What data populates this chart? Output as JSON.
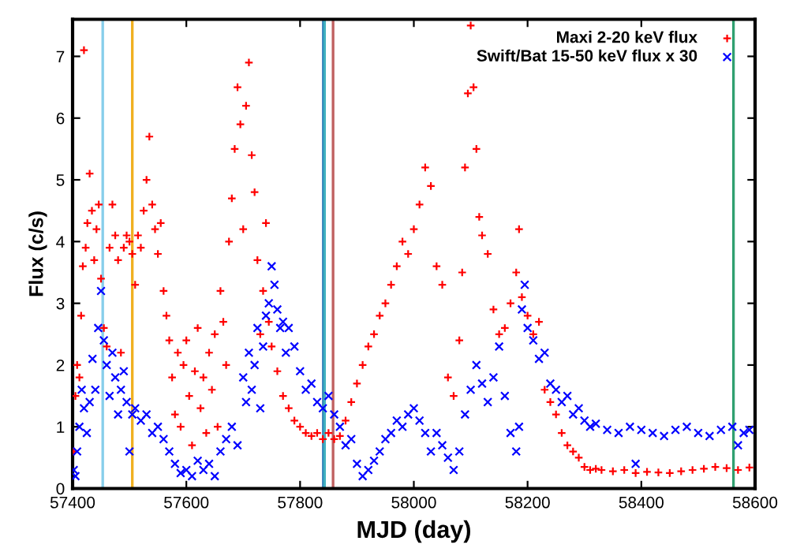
{
  "chart_data": {
    "type": "scatter",
    "xlabel": "MJD (day)",
    "ylabel": "Flux (c/s)",
    "xlim": [
      57400,
      58600
    ],
    "ylim": [
      0,
      7.6
    ],
    "xticks": [
      57400,
      57600,
      57800,
      58000,
      58200,
      58400,
      58600
    ],
    "yticks": [
      0,
      1,
      2,
      3,
      4,
      5,
      6,
      7
    ],
    "legend": "top right",
    "grid": false,
    "series": [
      {
        "name": "Maxi 2-20 keV flux",
        "color": "#ff0000",
        "marker": "cross",
        "x": [
          57402,
          57405,
          57408,
          57412,
          57415,
          57418,
          57420,
          57423,
          57426,
          57430,
          57434,
          57438,
          57442,
          57446,
          57450,
          57455,
          57460,
          57465,
          57470,
          57475,
          57480,
          57485,
          57490,
          57495,
          57500,
          57505,
          57510,
          57515,
          57520,
          57525,
          57530,
          57535,
          57540,
          57545,
          57550,
          57555,
          57560,
          57565,
          57570,
          57575,
          57580,
          57585,
          57590,
          57595,
          57600,
          57605,
          57610,
          57615,
          57620,
          57625,
          57630,
          57635,
          57640,
          57645,
          57650,
          57655,
          57660,
          57665,
          57670,
          57675,
          57680,
          57685,
          57690,
          57695,
          57700,
          57705,
          57710,
          57715,
          57720,
          57725,
          57730,
          57735,
          57740,
          57745,
          57750,
          57760,
          57770,
          57780,
          57790,
          57800,
          57810,
          57820,
          57830,
          57840,
          57850,
          57860,
          57870,
          57880,
          57890,
          57900,
          57910,
          57920,
          57930,
          57940,
          57950,
          57960,
          57970,
          57980,
          57990,
          58000,
          58010,
          58020,
          58030,
          58040,
          58050,
          58060,
          58070,
          58080,
          58085,
          58090,
          58095,
          58100,
          58105,
          58110,
          58115,
          58120,
          58130,
          58140,
          58150,
          58160,
          58170,
          58180,
          58185,
          58190,
          58200,
          58210,
          58220,
          58230,
          58240,
          58250,
          58260,
          58270,
          58280,
          58290,
          58300,
          58310,
          58320,
          58330,
          58350,
          58370,
          58390,
          58410,
          58430,
          58450,
          58470,
          58490,
          58510,
          58530,
          58550,
          58570,
          58590
        ],
        "values": [
          0.6,
          1.5,
          2.0,
          1.8,
          2.8,
          3.6,
          7.1,
          3.9,
          4.3,
          5.1,
          4.5,
          3.7,
          4.2,
          4.6,
          3.4,
          2.6,
          2.3,
          3.9,
          4.6,
          4.1,
          3.7,
          2.2,
          3.9,
          4.1,
          4.0,
          3.8,
          3.3,
          4.1,
          3.9,
          4.5,
          5.0,
          5.7,
          4.6,
          4.2,
          3.8,
          4.3,
          3.2,
          2.8,
          2.4,
          1.8,
          1.2,
          2.2,
          1.0,
          2.0,
          2.4,
          1.5,
          0.7,
          1.9,
          2.6,
          1.3,
          1.8,
          0.9,
          2.2,
          1.6,
          2.5,
          1.0,
          3.2,
          2.7,
          2.0,
          4.0,
          4.7,
          5.5,
          6.5,
          5.9,
          4.2,
          6.2,
          6.9,
          5.4,
          4.8,
          3.7,
          2.5,
          3.2,
          4.3,
          2.7,
          2.3,
          1.9,
          1.5,
          1.3,
          1.1,
          1.0,
          0.9,
          0.85,
          0.9,
          0.8,
          0.9,
          0.8,
          0.85,
          1.1,
          1.4,
          1.7,
          2.0,
          2.3,
          2.5,
          2.8,
          3.0,
          3.3,
          3.6,
          4.0,
          3.8,
          4.2,
          4.6,
          5.2,
          4.9,
          3.6,
          3.3,
          1.8,
          1.5,
          2.4,
          3.5,
          5.2,
          6.4,
          7.5,
          6.5,
          5.5,
          4.4,
          4.1,
          3.8,
          2.9,
          2.5,
          2.6,
          3.0,
          3.5,
          4.2,
          3.1,
          2.8,
          2.5,
          2.7,
          1.6,
          1.4,
          1.2,
          0.9,
          0.7,
          0.6,
          0.5,
          0.35,
          0.3,
          0.32,
          0.3,
          0.28,
          0.3,
          0.25,
          0.27,
          0.26,
          0.25,
          0.28,
          0.3,
          0.32,
          0.35,
          0.33,
          0.3,
          0.34
        ]
      },
      {
        "name": "Swift/Bat 15-50 keV flux x 30",
        "color": "#0000ff",
        "marker": "x",
        "x": [
          57402,
          57405,
          57408,
          57412,
          57416,
          57420,
          57425,
          57430,
          57435,
          57440,
          57445,
          57450,
          57455,
          57460,
          57465,
          57470,
          57475,
          57480,
          57485,
          57490,
          57495,
          57500,
          57505,
          57510,
          57520,
          57530,
          57540,
          57550,
          57560,
          57570,
          57580,
          57590,
          57600,
          57610,
          57620,
          57630,
          57640,
          57650,
          57660,
          57670,
          57680,
          57690,
          57700,
          57705,
          57710,
          57715,
          57720,
          57725,
          57730,
          57735,
          57740,
          57745,
          57750,
          57755,
          57760,
          57765,
          57770,
          57775,
          57780,
          57790,
          57800,
          57810,
          57820,
          57830,
          57840,
          57850,
          57860,
          57870,
          57880,
          57890,
          57900,
          57910,
          57920,
          57930,
          57940,
          57950,
          57960,
          57970,
          57980,
          57990,
          58000,
          58010,
          58020,
          58030,
          58040,
          58050,
          58060,
          58070,
          58080,
          58090,
          58100,
          58110,
          58120,
          58130,
          58140,
          58150,
          58160,
          58170,
          58180,
          58185,
          58190,
          58195,
          58200,
          58210,
          58220,
          58230,
          58240,
          58250,
          58260,
          58270,
          58280,
          58290,
          58300,
          58310,
          58320,
          58340,
          58360,
          58380,
          58390,
          58400,
          58420,
          58440,
          58460,
          58480,
          58500,
          58520,
          58540,
          58560,
          58570,
          58580,
          58590
        ],
        "values": [
          0.3,
          0.2,
          0.6,
          1.0,
          1.6,
          1.3,
          0.9,
          1.4,
          2.1,
          1.6,
          2.6,
          3.2,
          2.4,
          2.0,
          1.5,
          2.2,
          1.8,
          1.2,
          1.6,
          1.9,
          1.4,
          0.6,
          1.2,
          1.3,
          1.1,
          1.2,
          0.9,
          1.0,
          0.8,
          0.6,
          0.4,
          0.25,
          0.3,
          0.2,
          0.45,
          0.3,
          0.4,
          0.2,
          0.6,
          0.8,
          1.0,
          0.7,
          1.8,
          1.4,
          2.2,
          1.6,
          2.0,
          2.6,
          1.3,
          2.3,
          2.8,
          3.0,
          3.6,
          3.3,
          2.9,
          2.6,
          2.7,
          2.2,
          2.6,
          2.3,
          1.9,
          1.6,
          1.7,
          1.4,
          1.3,
          1.5,
          1.2,
          1.0,
          0.7,
          0.8,
          0.4,
          0.2,
          0.3,
          0.45,
          0.6,
          0.8,
          0.9,
          1.1,
          1.0,
          1.2,
          1.3,
          1.1,
          0.9,
          0.6,
          0.9,
          0.7,
          0.5,
          0.3,
          0.6,
          1.2,
          1.6,
          2.0,
          1.7,
          1.4,
          1.8,
          2.3,
          1.5,
          0.9,
          0.6,
          1.0,
          2.9,
          3.3,
          2.6,
          2.4,
          2.1,
          2.2,
          1.7,
          1.6,
          1.4,
          1.5,
          1.2,
          1.3,
          1.1,
          1.0,
          1.05,
          0.95,
          0.9,
          1.0,
          0.4,
          0.95,
          0.9,
          0.85,
          0.95,
          1.0,
          0.9,
          0.85,
          0.95,
          1.0,
          0.7,
          0.9,
          0.95
        ]
      }
    ],
    "ref_lines": [
      {
        "axis": "x",
        "value": 57453,
        "color": "#87ceeb"
      },
      {
        "axis": "x",
        "value": 57505,
        "color": "#f0b020"
      },
      {
        "axis": "x",
        "value": 57841,
        "color": "#1f6fb0"
      },
      {
        "axis": "x",
        "value": 57843,
        "color": "#40b0c0"
      },
      {
        "axis": "x",
        "value": 57858,
        "color": "#c06060"
      },
      {
        "axis": "x",
        "value": 58562,
        "color": "#30a070"
      }
    ]
  }
}
